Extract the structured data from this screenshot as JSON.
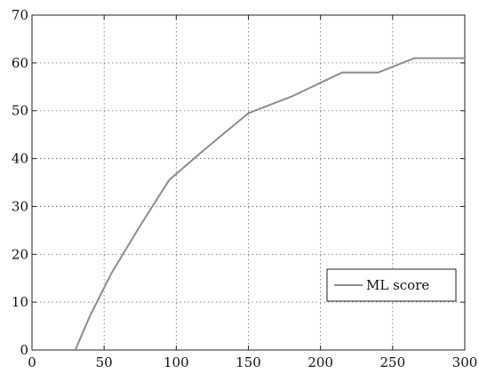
{
  "chart_data": {
    "type": "line",
    "title": "",
    "xlabel": "",
    "ylabel": "",
    "xlim": [
      0,
      300
    ],
    "ylim": [
      0,
      70
    ],
    "xticks": [
      0,
      50,
      100,
      150,
      200,
      250,
      300
    ],
    "yticks": [
      0,
      10,
      20,
      30,
      40,
      50,
      60,
      70
    ],
    "grid": true,
    "legend_position": "bottom-right",
    "series": [
      {
        "name": "ML score",
        "color": "#8c8c8c",
        "x": [
          30,
          40,
          55,
          75,
          95,
          120,
          150,
          180,
          215,
          240,
          265,
          300
        ],
        "y": [
          0,
          7,
          16,
          26,
          35.5,
          42,
          49.5,
          53,
          58,
          58,
          61,
          61
        ]
      }
    ]
  }
}
